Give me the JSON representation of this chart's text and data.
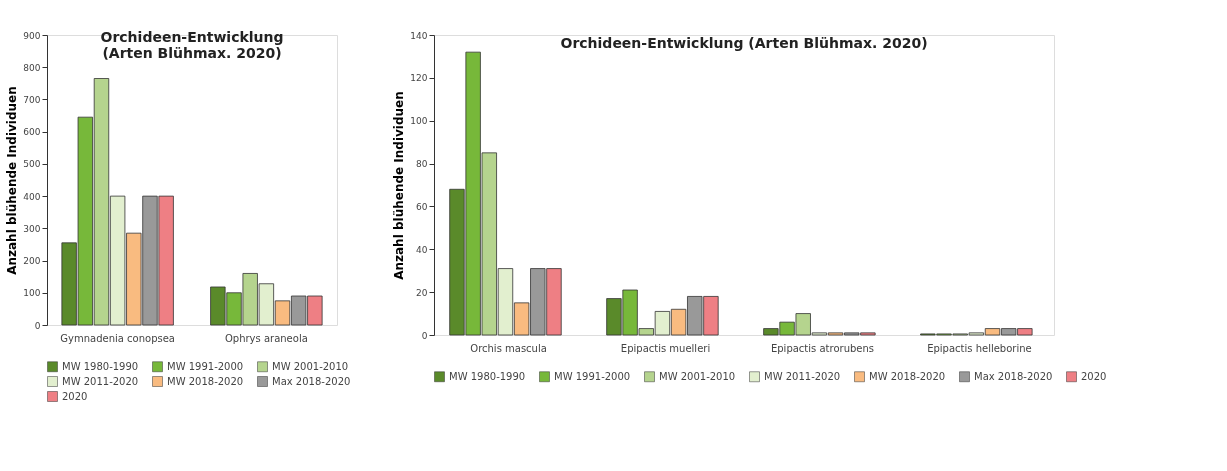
{
  "chart_data": [
    {
      "type": "bar",
      "title": "Orchideen-Entwicklung\n(Arten Blühmax. 2020)",
      "ylabel": "Anzahl blühende Individuen",
      "categories": [
        "Gymnadenia conopsea",
        "Ophrys araneola"
      ],
      "series": [
        {
          "name": "MW 1980-1990",
          "color": "#5a8a2a",
          "values": [
            255,
            118
          ]
        },
        {
          "name": "MW 1991-2000",
          "color": "#77b83a",
          "values": [
            645,
            100
          ]
        },
        {
          "name": "MW 2001-2010",
          "color": "#b5d48e",
          "values": [
            765,
            160
          ]
        },
        {
          "name": "MW 2011-2020",
          "color": "#e2efcf",
          "values": [
            400,
            128
          ]
        },
        {
          "name": "MW 2018-2020",
          "color": "#f9bb80",
          "values": [
            285,
            75
          ]
        },
        {
          "name": "Max 2018-2020",
          "color": "#999999",
          "values": [
            400,
            90
          ]
        },
        {
          "name": "2020",
          "color": "#ee7f84",
          "values": [
            400,
            90
          ]
        }
      ],
      "ylim": [
        0,
        900
      ],
      "yticks": [
        0,
        100,
        200,
        300,
        400,
        500,
        600,
        700,
        800,
        900
      ],
      "grid": false,
      "legend": "bottom"
    },
    {
      "type": "bar",
      "title": "Orchideen-Entwicklung (Arten Blühmax. 2020)",
      "ylabel": "Anzahl blühende Individuen",
      "categories": [
        "Orchis mascula",
        "Epipactis muelleri",
        "Epipactis atrorubens",
        "Epipactis helleborine"
      ],
      "series": [
        {
          "name": "MW 1980-1990",
          "color": "#5a8a2a",
          "values": [
            68,
            17,
            3,
            0.5
          ]
        },
        {
          "name": "MW 1991-2000",
          "color": "#77b83a",
          "values": [
            132,
            21,
            6,
            0.5
          ]
        },
        {
          "name": "MW 2001-2010",
          "color": "#b5d48e",
          "values": [
            85,
            3,
            10,
            0.5
          ]
        },
        {
          "name": "MW 2011-2020",
          "color": "#e2efcf",
          "values": [
            31,
            11,
            1,
            1
          ]
        },
        {
          "name": "MW 2018-2020",
          "color": "#f9bb80",
          "values": [
            15,
            12,
            1,
            3
          ]
        },
        {
          "name": "Max 2018-2020",
          "color": "#999999",
          "values": [
            31,
            18,
            1,
            3
          ]
        },
        {
          "name": "2020",
          "color": "#ee7f84",
          "values": [
            31,
            18,
            1,
            3
          ]
        }
      ],
      "ylim": [
        0,
        140
      ],
      "yticks": [
        0,
        20,
        40,
        60,
        80,
        100,
        120,
        140
      ],
      "grid": false,
      "legend": "bottom"
    }
  ]
}
